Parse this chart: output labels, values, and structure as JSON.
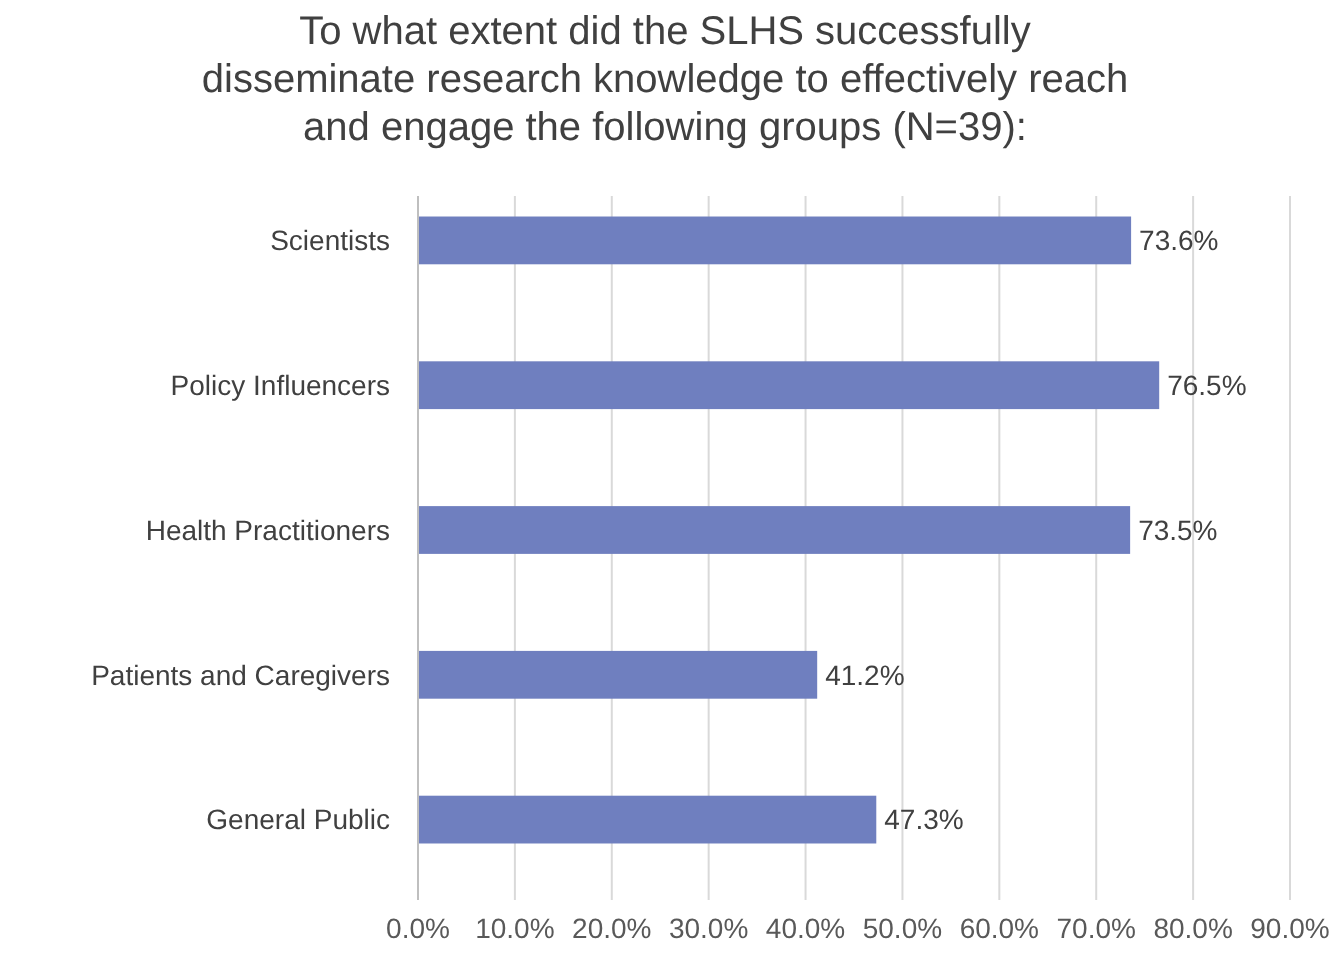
{
  "chart_data": {
    "type": "bar",
    "orientation": "horizontal",
    "title": "To what extent did the SLHS successfully disseminate research knowledge to effectively reach and engage the following groups (N=39):",
    "categories": [
      "Scientists",
      "Policy Influencers",
      "Health Practitioners",
      "Patients and Caregivers",
      "General Public"
    ],
    "values": [
      73.6,
      76.5,
      73.5,
      41.2,
      47.3
    ],
    "value_labels": [
      "73.6%",
      "76.5%",
      "73.5%",
      "41.2%",
      "47.3%"
    ],
    "color": "#6f7fbf",
    "xlim": [
      0,
      90
    ],
    "xticks": [
      {
        "value": 0,
        "label": "0.0%"
      },
      {
        "value": 10,
        "label": "10.0%"
      },
      {
        "value": 20,
        "label": "20.0%"
      },
      {
        "value": 30,
        "label": "30.0%"
      },
      {
        "value": 40,
        "label": "40.0%"
      },
      {
        "value": 50,
        "label": "50.0%"
      },
      {
        "value": 60,
        "label": "60.0%"
      },
      {
        "value": 70,
        "label": "70.0%"
      },
      {
        "value": 80,
        "label": "80.0%"
      },
      {
        "value": 90,
        "label": "90.0%"
      }
    ],
    "grid": "x"
  }
}
